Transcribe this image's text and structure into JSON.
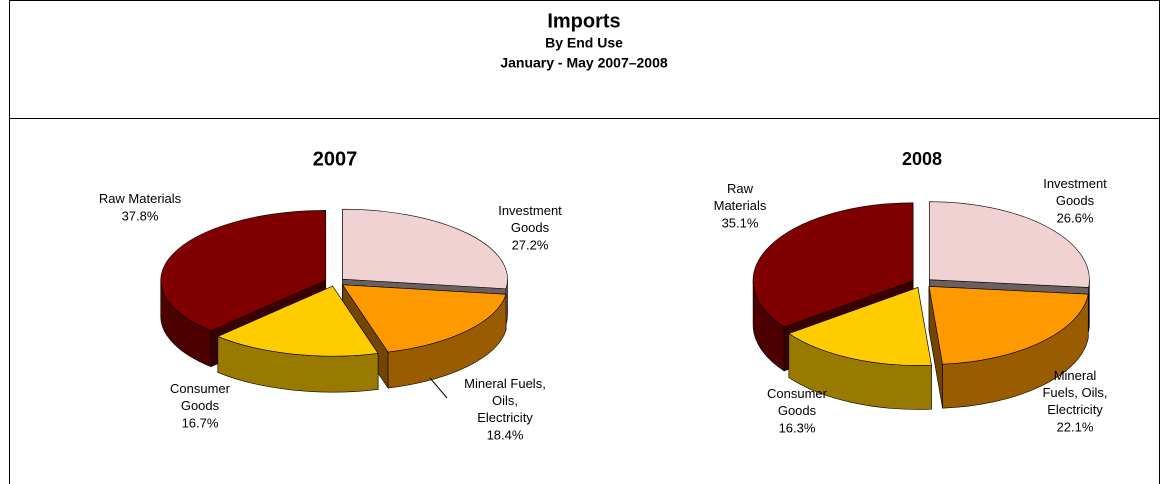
{
  "header": {
    "title": "Imports",
    "subtitle": "By End Use",
    "period": "January - May 2007–2008"
  },
  "chart_data": [
    {
      "type": "pie3d",
      "title": "2007",
      "categories": [
        "Investment Goods",
        "Mineral Fuels, Oils, Electricity",
        "Consumer Goods",
        "Raw Materials"
      ],
      "values": [
        27.2,
        18.4,
        16.7,
        37.8
      ],
      "value_labels": [
        "27.2%",
        "18.4%",
        "16.7%",
        "37.8%"
      ],
      "colors": [
        "#f0d2d2",
        "#ff9900",
        "#ffcc00",
        "#800000"
      ]
    },
    {
      "type": "pie3d",
      "title": "2008",
      "categories": [
        "Investment Goods",
        "Mineral Fuels, Oils, Electricity",
        "Consumer Goods",
        "Raw Materials"
      ],
      "values": [
        26.6,
        22.1,
        16.3,
        35.1
      ],
      "value_labels": [
        "26.6%",
        "22.1%",
        "16.3%",
        "35.1%"
      ],
      "colors": [
        "#f0d2d2",
        "#ff9900",
        "#ffcc00",
        "#800000"
      ]
    }
  ]
}
